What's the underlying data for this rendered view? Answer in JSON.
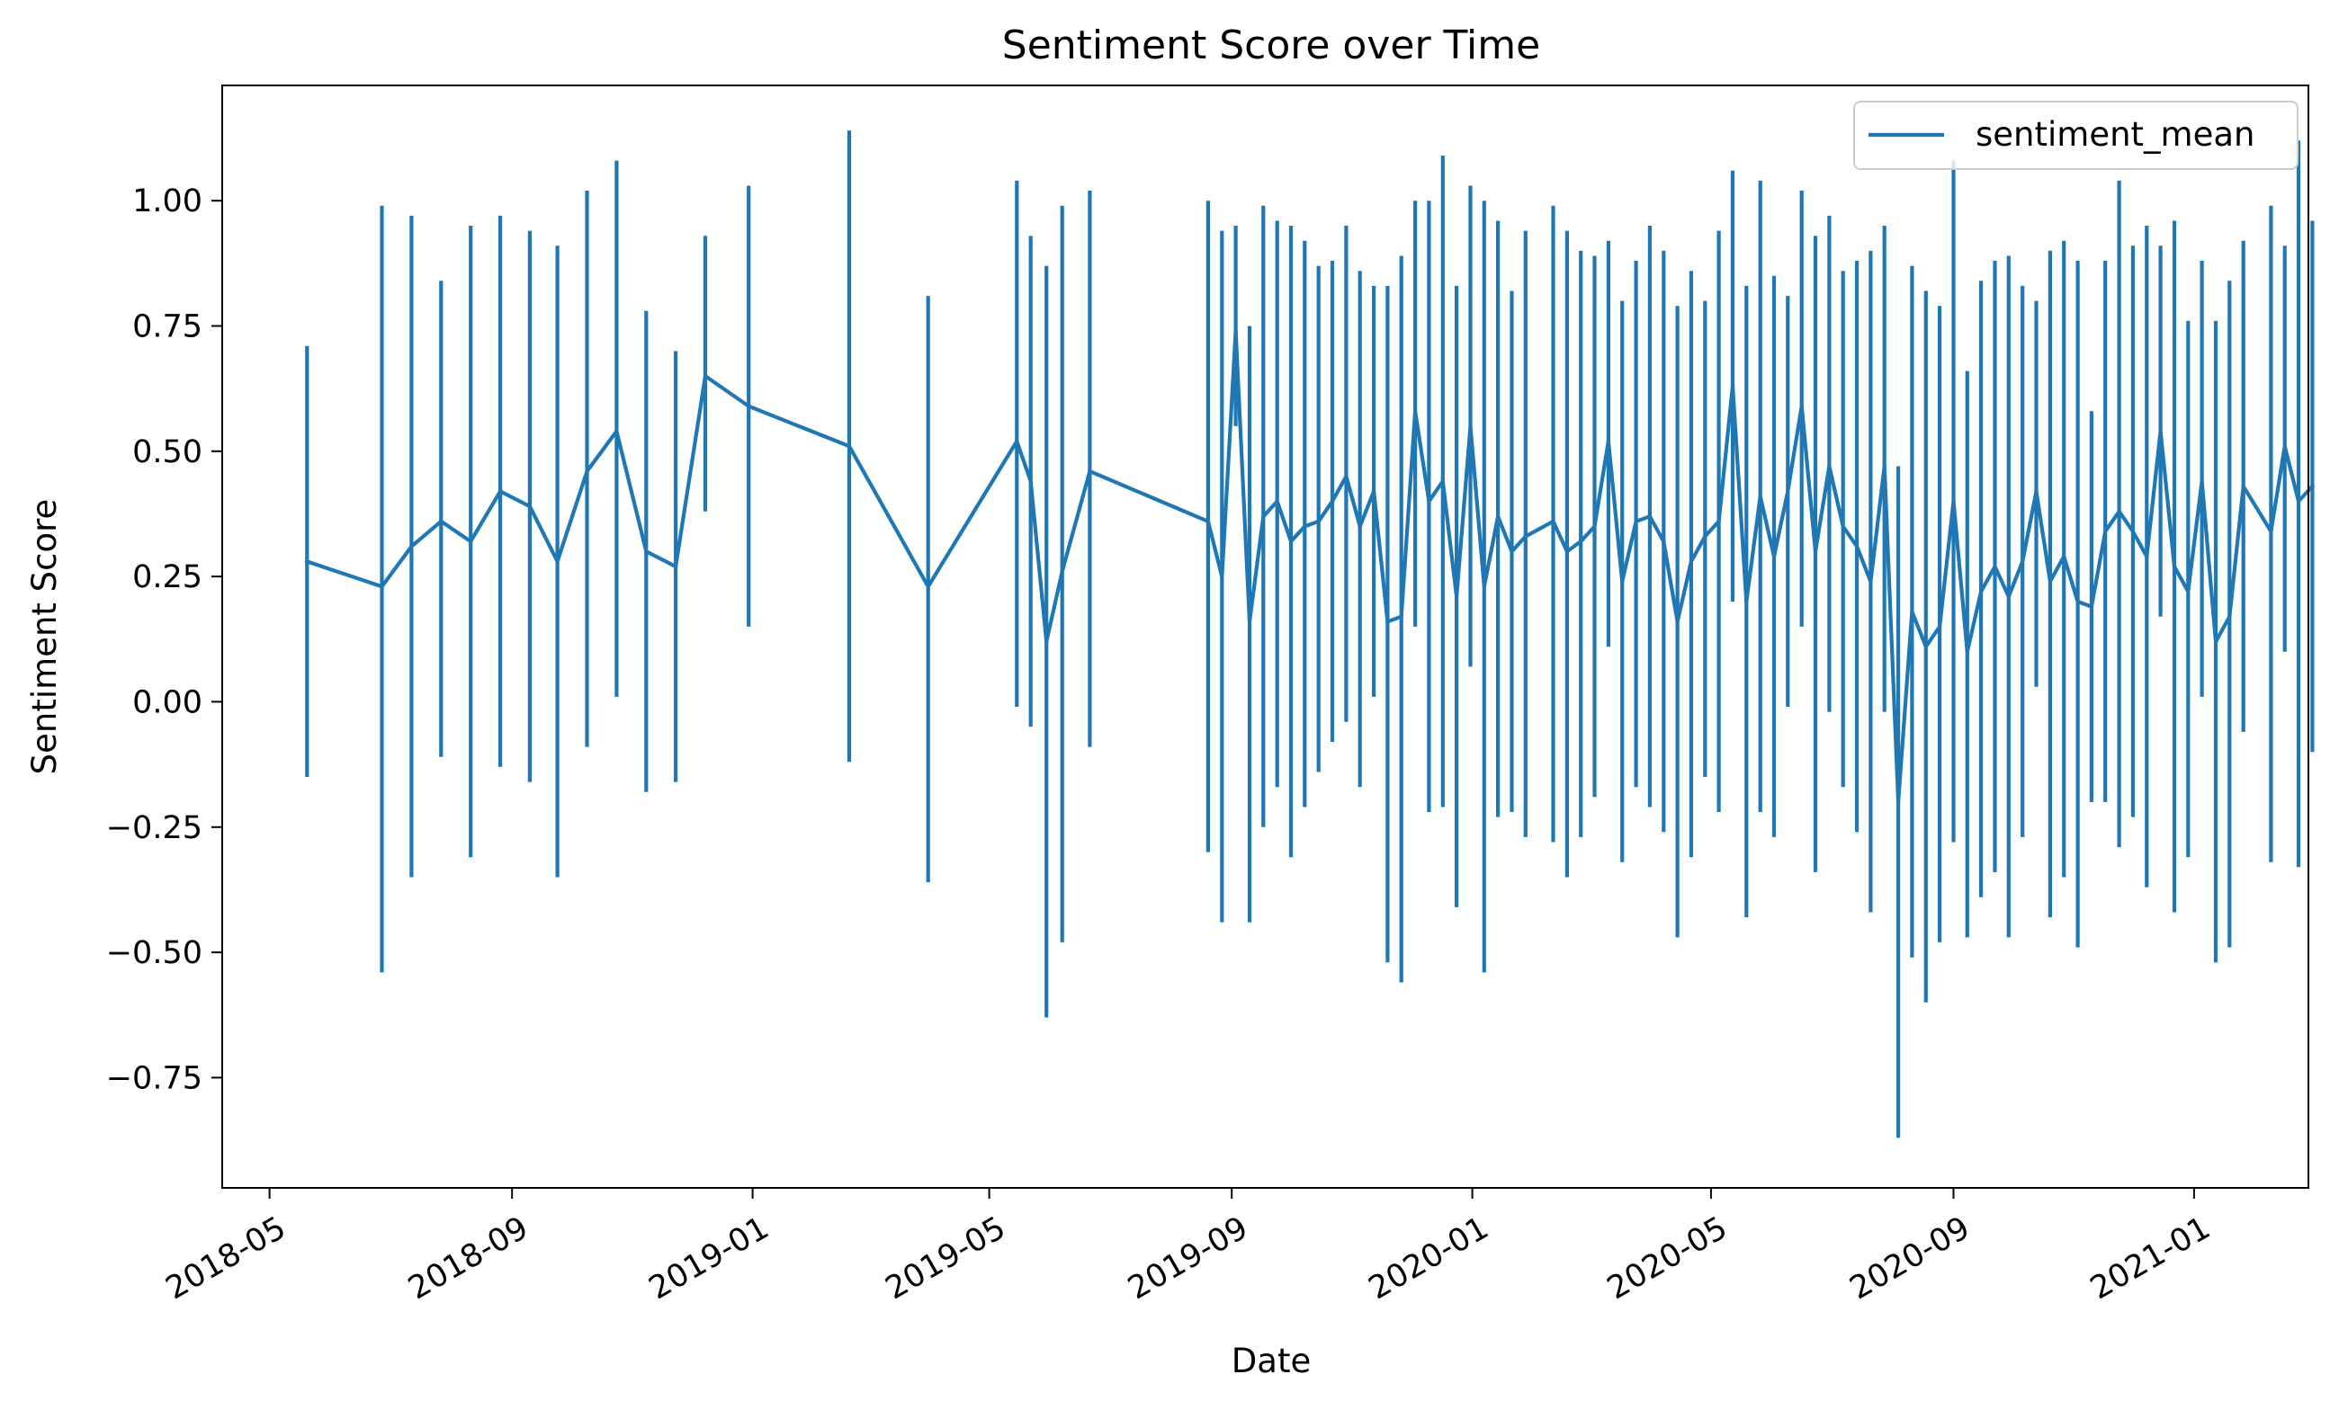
{
  "chart_data": {
    "type": "line",
    "title": "Sentiment Score over Time",
    "xlabel": "Date",
    "ylabel": "Sentiment Score",
    "x_axis": {
      "scale": "date",
      "range": [
        "2018-04-07",
        "2021-02-28"
      ],
      "ticks": [
        "2018-05-01",
        "2018-09-01",
        "2019-01-01",
        "2019-05-01",
        "2019-09-01",
        "2020-01-01",
        "2020-05-01",
        "2020-09-01",
        "2021-01-01"
      ],
      "tick_labels": [
        "2018-05",
        "2018-09",
        "2019-01",
        "2019-05",
        "2019-09",
        "2020-01",
        "2020-05",
        "2020-09",
        "2021-01"
      ]
    },
    "y_axis": {
      "range": [
        -0.97,
        1.23
      ],
      "ticks": [
        -0.75,
        -0.5,
        -0.25,
        0.0,
        0.25,
        0.5,
        0.75,
        1.0
      ],
      "tick_labels": [
        "−0.75",
        "−0.50",
        "−0.25",
        "0.00",
        "0.25",
        "0.50",
        "0.75",
        "1.00"
      ]
    },
    "grid": false,
    "legend": {
      "position": "top-right",
      "entries": [
        "sentiment_mean"
      ]
    },
    "colors": {
      "series": "#1f77b4"
    },
    "series": [
      {
        "name": "sentiment_mean",
        "points": [
          {
            "x": "2018-05-20",
            "y": 0.28,
            "low": -0.15,
            "high": 0.71
          },
          {
            "x": "2018-06-27",
            "y": 0.23,
            "low": -0.54,
            "high": 0.99
          },
          {
            "x": "2018-07-12",
            "y": 0.31,
            "low": -0.35,
            "high": 0.97
          },
          {
            "x": "2018-07-27",
            "y": 0.36,
            "low": -0.11,
            "high": 0.84
          },
          {
            "x": "2018-08-11",
            "y": 0.32,
            "low": -0.31,
            "high": 0.95
          },
          {
            "x": "2018-08-26",
            "y": 0.42,
            "low": -0.13,
            "high": 0.97
          },
          {
            "x": "2018-09-10",
            "y": 0.39,
            "low": -0.16,
            "high": 0.94
          },
          {
            "x": "2018-09-24",
            "y": 0.28,
            "low": -0.35,
            "high": 0.91
          },
          {
            "x": "2018-10-09",
            "y": 0.46,
            "low": -0.09,
            "high": 1.02
          },
          {
            "x": "2018-10-24",
            "y": 0.54,
            "low": 0.01,
            "high": 1.08
          },
          {
            "x": "2018-11-08",
            "y": 0.3,
            "low": -0.18,
            "high": 0.78
          },
          {
            "x": "2018-11-23",
            "y": 0.27,
            "low": -0.16,
            "high": 0.7
          },
          {
            "x": "2018-12-08",
            "y": 0.65,
            "low": 0.38,
            "high": 0.93
          },
          {
            "x": "2018-12-30",
            "y": 0.59,
            "low": 0.15,
            "high": 1.03
          },
          {
            "x": "2019-02-19",
            "y": 0.51,
            "low": -0.12,
            "high": 1.14
          },
          {
            "x": "2019-03-31",
            "y": 0.23,
            "low": -0.36,
            "high": 0.81
          },
          {
            "x": "2019-05-15",
            "y": 0.52,
            "low": -0.01,
            "high": 1.04
          },
          {
            "x": "2019-05-22",
            "y": 0.44,
            "low": -0.05,
            "high": 0.93
          },
          {
            "x": "2019-05-30",
            "y": 0.12,
            "low": -0.63,
            "high": 0.87
          },
          {
            "x": "2019-06-07",
            "y": 0.26,
            "low": -0.48,
            "high": 0.99
          },
          {
            "x": "2019-06-21",
            "y": 0.46,
            "low": -0.09,
            "high": 1.02
          },
          {
            "x": "2019-08-20",
            "y": 0.36,
            "low": -0.3,
            "high": 1.0
          },
          {
            "x": "2019-08-27",
            "y": 0.25,
            "low": -0.44,
            "high": 0.94
          },
          {
            "x": "2019-09-03",
            "y": 0.74,
            "low": 0.55,
            "high": 0.95
          },
          {
            "x": "2019-09-10",
            "y": 0.16,
            "low": -0.44,
            "high": 0.75
          },
          {
            "x": "2019-09-17",
            "y": 0.37,
            "low": -0.25,
            "high": 0.99
          },
          {
            "x": "2019-09-24",
            "y": 0.4,
            "low": -0.17,
            "high": 0.96
          },
          {
            "x": "2019-10-01",
            "y": 0.32,
            "low": -0.31,
            "high": 0.95
          },
          {
            "x": "2019-10-08",
            "y": 0.35,
            "low": -0.21,
            "high": 0.92
          },
          {
            "x": "2019-10-15",
            "y": 0.36,
            "low": -0.14,
            "high": 0.87
          },
          {
            "x": "2019-10-22",
            "y": 0.4,
            "low": -0.08,
            "high": 0.88
          },
          {
            "x": "2019-10-29",
            "y": 0.45,
            "low": -0.04,
            "high": 0.95
          },
          {
            "x": "2019-11-05",
            "y": 0.35,
            "low": -0.17,
            "high": 0.86
          },
          {
            "x": "2019-11-12",
            "y": 0.42,
            "low": 0.01,
            "high": 0.83
          },
          {
            "x": "2019-11-19",
            "y": 0.16,
            "low": -0.52,
            "high": 0.83
          },
          {
            "x": "2019-11-26",
            "y": 0.17,
            "low": -0.56,
            "high": 0.89
          },
          {
            "x": "2019-12-03",
            "y": 0.58,
            "low": 0.15,
            "high": 1.0
          },
          {
            "x": "2019-12-10",
            "y": 0.4,
            "low": -0.22,
            "high": 1.0
          },
          {
            "x": "2019-12-17",
            "y": 0.44,
            "low": -0.21,
            "high": 1.09
          },
          {
            "x": "2019-12-24",
            "y": 0.21,
            "low": -0.41,
            "high": 0.83
          },
          {
            "x": "2019-12-31",
            "y": 0.55,
            "low": 0.07,
            "high": 1.03
          },
          {
            "x": "2020-01-07",
            "y": 0.23,
            "low": -0.54,
            "high": 1.0
          },
          {
            "x": "2020-01-14",
            "y": 0.37,
            "low": -0.23,
            "high": 0.96
          },
          {
            "x": "2020-01-21",
            "y": 0.3,
            "low": -0.22,
            "high": 0.82
          },
          {
            "x": "2020-01-28",
            "y": 0.33,
            "low": -0.27,
            "high": 0.94
          },
          {
            "x": "2020-02-11",
            "y": 0.36,
            "low": -0.28,
            "high": 0.99
          },
          {
            "x": "2020-02-18",
            "y": 0.3,
            "low": -0.35,
            "high": 0.94
          },
          {
            "x": "2020-02-25",
            "y": 0.32,
            "low": -0.27,
            "high": 0.9
          },
          {
            "x": "2020-03-03",
            "y": 0.35,
            "low": -0.19,
            "high": 0.89
          },
          {
            "x": "2020-03-10",
            "y": 0.52,
            "low": 0.11,
            "high": 0.92
          },
          {
            "x": "2020-03-17",
            "y": 0.24,
            "low": -0.32,
            "high": 0.8
          },
          {
            "x": "2020-03-24",
            "y": 0.36,
            "low": -0.17,
            "high": 0.88
          },
          {
            "x": "2020-03-31",
            "y": 0.37,
            "low": -0.21,
            "high": 0.95
          },
          {
            "x": "2020-04-07",
            "y": 0.32,
            "low": -0.26,
            "high": 0.9
          },
          {
            "x": "2020-04-14",
            "y": 0.16,
            "low": -0.47,
            "high": 0.79
          },
          {
            "x": "2020-04-21",
            "y": 0.28,
            "low": -0.31,
            "high": 0.86
          },
          {
            "x": "2020-04-28",
            "y": 0.33,
            "low": -0.15,
            "high": 0.8
          },
          {
            "x": "2020-05-05",
            "y": 0.36,
            "low": -0.22,
            "high": 0.94
          },
          {
            "x": "2020-05-12",
            "y": 0.63,
            "low": 0.2,
            "high": 1.06
          },
          {
            "x": "2020-05-19",
            "y": 0.2,
            "low": -0.43,
            "high": 0.83
          },
          {
            "x": "2020-05-26",
            "y": 0.41,
            "low": -0.22,
            "high": 1.04
          },
          {
            "x": "2020-06-02",
            "y": 0.29,
            "low": -0.27,
            "high": 0.85
          },
          {
            "x": "2020-06-09",
            "y": 0.42,
            "low": -0.01,
            "high": 0.81
          },
          {
            "x": "2020-06-16",
            "y": 0.59,
            "low": 0.15,
            "high": 1.02
          },
          {
            "x": "2020-06-23",
            "y": 0.3,
            "low": -0.34,
            "high": 0.93
          },
          {
            "x": "2020-06-30",
            "y": 0.47,
            "low": -0.02,
            "high": 0.97
          },
          {
            "x": "2020-07-07",
            "y": 0.35,
            "low": -0.17,
            "high": 0.86
          },
          {
            "x": "2020-07-14",
            "y": 0.31,
            "low": -0.26,
            "high": 0.88
          },
          {
            "x": "2020-07-21",
            "y": 0.24,
            "low": -0.42,
            "high": 0.9
          },
          {
            "x": "2020-07-28",
            "y": 0.47,
            "low": -0.02,
            "high": 0.95
          },
          {
            "x": "2020-08-04",
            "y": -0.2,
            "low": -0.87,
            "high": 0.47
          },
          {
            "x": "2020-08-11",
            "y": 0.18,
            "low": -0.51,
            "high": 0.87
          },
          {
            "x": "2020-08-18",
            "y": 0.11,
            "low": -0.6,
            "high": 0.82
          },
          {
            "x": "2020-08-25",
            "y": 0.15,
            "low": -0.48,
            "high": 0.79
          },
          {
            "x": "2020-09-01",
            "y": 0.4,
            "low": -0.28,
            "high": 1.08
          },
          {
            "x": "2020-09-08",
            "y": 0.1,
            "low": -0.47,
            "high": 0.66
          },
          {
            "x": "2020-09-15",
            "y": 0.22,
            "low": -0.39,
            "high": 0.84
          },
          {
            "x": "2020-09-22",
            "y": 0.27,
            "low": -0.34,
            "high": 0.88
          },
          {
            "x": "2020-09-29",
            "y": 0.21,
            "low": -0.47,
            "high": 0.89
          },
          {
            "x": "2020-10-06",
            "y": 0.28,
            "low": -0.27,
            "high": 0.83
          },
          {
            "x": "2020-10-13",
            "y": 0.42,
            "low": 0.03,
            "high": 0.8
          },
          {
            "x": "2020-10-20",
            "y": 0.24,
            "low": -0.43,
            "high": 0.9
          },
          {
            "x": "2020-10-27",
            "y": 0.29,
            "low": -0.35,
            "high": 0.92
          },
          {
            "x": "2020-11-03",
            "y": 0.2,
            "low": -0.49,
            "high": 0.88
          },
          {
            "x": "2020-11-10",
            "y": 0.19,
            "low": -0.2,
            "high": 0.58
          },
          {
            "x": "2020-11-17",
            "y": 0.34,
            "low": -0.2,
            "high": 0.88
          },
          {
            "x": "2020-11-24",
            "y": 0.38,
            "low": -0.29,
            "high": 1.04
          },
          {
            "x": "2020-12-01",
            "y": 0.34,
            "low": -0.23,
            "high": 0.91
          },
          {
            "x": "2020-12-08",
            "y": 0.29,
            "low": -0.37,
            "high": 0.95
          },
          {
            "x": "2020-12-15",
            "y": 0.54,
            "low": 0.17,
            "high": 0.91
          },
          {
            "x": "2020-12-22",
            "y": 0.27,
            "low": -0.42,
            "high": 0.96
          },
          {
            "x": "2020-12-29",
            "y": 0.22,
            "low": -0.31,
            "high": 0.76
          },
          {
            "x": "2021-01-05",
            "y": 0.44,
            "low": 0.01,
            "high": 0.88
          },
          {
            "x": "2021-01-12",
            "y": 0.12,
            "low": -0.52,
            "high": 0.76
          },
          {
            "x": "2021-01-19",
            "y": 0.17,
            "low": -0.49,
            "high": 0.84
          },
          {
            "x": "2021-01-26",
            "y": 0.43,
            "low": -0.06,
            "high": 0.92
          },
          {
            "x": "2021-02-09",
            "y": 0.34,
            "low": -0.32,
            "high": 0.99
          },
          {
            "x": "2021-02-16",
            "y": 0.51,
            "low": 0.1,
            "high": 0.91
          },
          {
            "x": "2021-02-23",
            "y": 0.4,
            "low": -0.33,
            "high": 1.12
          },
          {
            "x": "2021-03-02",
            "y": 0.43,
            "low": -0.1,
            "high": 0.96
          }
        ]
      }
    ]
  }
}
